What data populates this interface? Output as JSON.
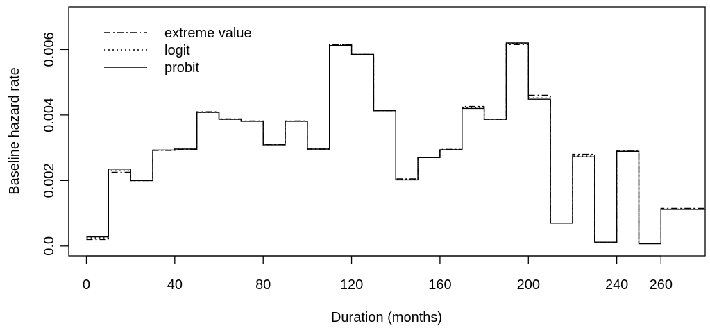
{
  "chart_data": {
    "type": "line",
    "step": true,
    "xlabel": "Duration (months)",
    "ylabel": "Baseline hazard rate",
    "xlim": [
      -8,
      280
    ],
    "ylim": [
      -0.0003,
      0.0073
    ],
    "x_ticks": [
      0,
      40,
      80,
      120,
      160,
      200,
      240,
      260
    ],
    "x_tick_labels": [
      "0",
      "40",
      "80",
      "120",
      "160",
      "200",
      "240",
      "260"
    ],
    "y_ticks": [
      0.0,
      0.002,
      0.004,
      0.006
    ],
    "y_tick_labels": [
      "0.0",
      "0.002",
      "0.004",
      "0.006"
    ],
    "grid": false,
    "legend_position": "top-left",
    "x": [
      0,
      10,
      20,
      30,
      40,
      50,
      60,
      70,
      80,
      90,
      100,
      110,
      120,
      130,
      140,
      150,
      160,
      170,
      180,
      190,
      200,
      210,
      220,
      230,
      240,
      250,
      260,
      270
    ],
    "series": [
      {
        "name": "extreme value",
        "dash": "dashdot",
        "values": [
          0.0002,
          0.00225,
          0.002,
          0.00292,
          0.00295,
          0.0041,
          0.00388,
          0.00382,
          0.0031,
          0.00382,
          0.00296,
          0.00615,
          0.00585,
          0.00413,
          0.00205,
          0.0027,
          0.00295,
          0.00426,
          0.00387,
          0.00615,
          0.0046,
          0.0007,
          0.0028,
          0.00012,
          0.0029,
          8e-05,
          0.00115,
          0.00115
        ]
      },
      {
        "name": "logit",
        "dash": "dotted",
        "values": [
          0.00025,
          0.0023,
          0.002,
          0.00293,
          0.00296,
          0.00408,
          0.00387,
          0.00381,
          0.00309,
          0.00381,
          0.00296,
          0.00614,
          0.00585,
          0.00413,
          0.00203,
          0.0027,
          0.00295,
          0.00423,
          0.00387,
          0.00618,
          0.00452,
          0.0007,
          0.00275,
          0.00012,
          0.00289,
          8e-05,
          0.00113,
          0.00113
        ]
      },
      {
        "name": "probit",
        "dash": "solid",
        "values": [
          0.00028,
          0.00235,
          0.002,
          0.00293,
          0.00296,
          0.00408,
          0.00387,
          0.00381,
          0.00309,
          0.00381,
          0.00296,
          0.00612,
          0.00585,
          0.00413,
          0.00202,
          0.0027,
          0.00294,
          0.0042,
          0.00387,
          0.0062,
          0.00448,
          0.0007,
          0.00272,
          0.00012,
          0.00289,
          7e-05,
          0.00112,
          0.00112
        ]
      }
    ]
  }
}
